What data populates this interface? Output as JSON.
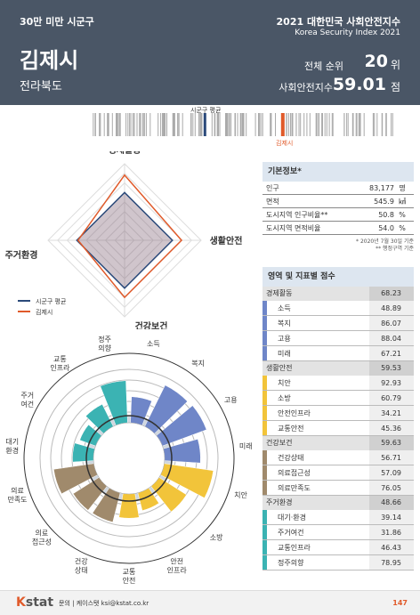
{
  "header": {
    "category": "30만 미만 시군구",
    "city": "김제시",
    "province": "전라북도",
    "index_title": "2021 대한민국 사회안전지수",
    "index_title_en": "Korea Security Index 2021",
    "rank_label": "전체 순위",
    "rank_value": "20",
    "rank_unit": "위",
    "score_label": "사회안전지수",
    "score_value": "59.01",
    "score_unit": "점"
  },
  "barcode": {
    "avg_label": "시군구 평균",
    "city_label": "김제시",
    "avg_position": 0.37,
    "city_position": 0.62,
    "colors": {
      "avg": "#2b4a7a",
      "city": "#e05a2a",
      "bars": "#aaaaaa"
    }
  },
  "radar": {
    "axes": [
      "경제활동",
      "생활안전",
      "건강보건",
      "주거환경"
    ],
    "legend": [
      {
        "label": "시군구 평균",
        "color": "#2b4a7a"
      },
      {
        "label": "김제시",
        "color": "#e05a2a"
      }
    ],
    "average": [
      50,
      50,
      50,
      50
    ],
    "city": [
      68.23,
      59.53,
      59.63,
      48.66
    ],
    "max": 80
  },
  "rose": {
    "labels": [
      "소득",
      "복지",
      "고용",
      "미래",
      "치안",
      "소방",
      "안전\n인프라",
      "교통\n안전",
      "건강\n상태",
      "의료\n접근성",
      "의료\n만족도",
      "대기\n환경",
      "주거\n여건",
      "교통\n인프라",
      "정주\n의향"
    ],
    "values": [
      48.89,
      86.07,
      88.04,
      67.21,
      92.93,
      60.79,
      34.21,
      45.36,
      56.71,
      57.09,
      76.05,
      39.14,
      31.86,
      46.43,
      78.95
    ],
    "colors": [
      "#6f86c8",
      "#6f86c8",
      "#6f86c8",
      "#6f86c8",
      "#f2c43a",
      "#f2c43a",
      "#f2c43a",
      "#f2c43a",
      "#a08a6c",
      "#a08a6c",
      "#a08a6c",
      "#3bb3b3",
      "#3bb3b3",
      "#3bb3b3",
      "#3bb3b3"
    ],
    "max": 100
  },
  "basic_info": {
    "title": "기본정보*",
    "rows": [
      {
        "label": "인구",
        "value": "83,177",
        "unit": "명"
      },
      {
        "label": "면적",
        "value": "545.9",
        "unit": "㎢"
      },
      {
        "label": "도시지역 인구비율**",
        "value": "50.8",
        "unit": "%"
      },
      {
        "label": "도시지역 면적비율",
        "value": "54.0",
        "unit": "%"
      }
    ],
    "note1": "* 2020년 7월 30일 기준",
    "note2": "** 행정구역 기준"
  },
  "scores": {
    "title": "영역 및 지표별 점수",
    "categories": [
      {
        "name": "경제활동",
        "value": "68.23",
        "color": "#6f86c8",
        "items": [
          {
            "name": "소득",
            "value": "48.89"
          },
          {
            "name": "복지",
            "value": "86.07"
          },
          {
            "name": "고용",
            "value": "88.04"
          },
          {
            "name": "미래",
            "value": "67.21"
          }
        ]
      },
      {
        "name": "생활안전",
        "value": "59.53",
        "color": "#f2c43a",
        "items": [
          {
            "name": "치안",
            "value": "92.93"
          },
          {
            "name": "소방",
            "value": "60.79"
          },
          {
            "name": "안전인프라",
            "value": "34.21"
          },
          {
            "name": "교통안전",
            "value": "45.36"
          }
        ]
      },
      {
        "name": "건강보건",
        "value": "59.63",
        "color": "#a08a6c",
        "items": [
          {
            "name": "건강상태",
            "value": "56.71"
          },
          {
            "name": "의료접근성",
            "value": "57.09"
          },
          {
            "name": "의료만족도",
            "value": "76.05"
          }
        ]
      },
      {
        "name": "주거환경",
        "value": "48.66",
        "color": "#3bb3b3",
        "items": [
          {
            "name": "대기·환경",
            "value": "39.14"
          },
          {
            "name": "주거여건",
            "value": "31.86"
          },
          {
            "name": "교통인프라",
            "value": "46.43"
          },
          {
            "name": "정주의향",
            "value": "78.95"
          }
        ]
      }
    ]
  },
  "footer": {
    "logo_k": "K",
    "logo_rest": "stat",
    "contact": "문의 | 케이스탯 ksi@kstat.co.kr",
    "page": "147"
  }
}
